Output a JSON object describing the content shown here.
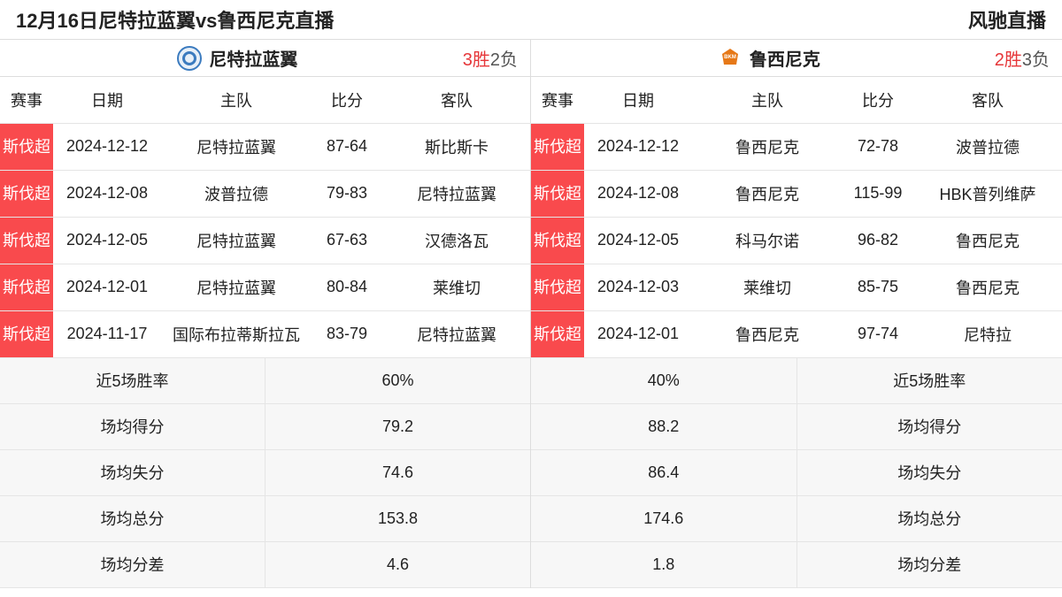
{
  "header": {
    "title": "12月16日尼特拉蓝翼vs鲁西尼克直播",
    "brand": "风驰直播"
  },
  "teams": {
    "left": {
      "name": "尼特拉蓝翼",
      "logo_text": "◐",
      "wins": "3胜",
      "losses": "2负"
    },
    "right": {
      "name": "鲁西尼克",
      "logo_text": "BKM",
      "wins": "2胜",
      "losses": "3负"
    }
  },
  "columns": {
    "league": "赛事",
    "date": "日期",
    "home": "主队",
    "score": "比分",
    "away": "客队"
  },
  "left_matches": [
    {
      "league": "斯伐超",
      "date": "2024-12-12",
      "home": "尼特拉蓝翼",
      "score": "87-64",
      "away": "斯比斯卡"
    },
    {
      "league": "斯伐超",
      "date": "2024-12-08",
      "home": "波普拉德",
      "score": "79-83",
      "away": "尼特拉蓝翼"
    },
    {
      "league": "斯伐超",
      "date": "2024-12-05",
      "home": "尼特拉蓝翼",
      "score": "67-63",
      "away": "汉德洛瓦"
    },
    {
      "league": "斯伐超",
      "date": "2024-12-01",
      "home": "尼特拉蓝翼",
      "score": "80-84",
      "away": "莱维切"
    },
    {
      "league": "斯伐超",
      "date": "2024-11-17",
      "home": "国际布拉蒂斯拉瓦",
      "score": "83-79",
      "away": "尼特拉蓝翼"
    }
  ],
  "right_matches": [
    {
      "league": "斯伐超",
      "date": "2024-12-12",
      "home": "鲁西尼克",
      "score": "72-78",
      "away": "波普拉德"
    },
    {
      "league": "斯伐超",
      "date": "2024-12-08",
      "home": "鲁西尼克",
      "score": "115-99",
      "away": "HBK普列维萨"
    },
    {
      "league": "斯伐超",
      "date": "2024-12-05",
      "home": "科马尔诺",
      "score": "96-82",
      "away": "鲁西尼克"
    },
    {
      "league": "斯伐超",
      "date": "2024-12-03",
      "home": "莱维切",
      "score": "85-75",
      "away": "鲁西尼克"
    },
    {
      "league": "斯伐超",
      "date": "2024-12-01",
      "home": "鲁西尼克",
      "score": "97-74",
      "away": "尼特拉"
    }
  ],
  "stats": {
    "labels": {
      "winrate": "近5场胜率",
      "avg_score": "场均得分",
      "avg_concede": "场均失分",
      "avg_total": "场均总分",
      "avg_diff": "场均分差"
    },
    "left": {
      "winrate": "60%",
      "avg_score": "79.2",
      "avg_concede": "74.6",
      "avg_total": "153.8",
      "avg_diff": "4.6"
    },
    "right": {
      "winrate": "40%",
      "avg_score": "88.2",
      "avg_concede": "86.4",
      "avg_total": "174.6",
      "avg_diff": "1.8"
    }
  },
  "colors": {
    "badge_bg": "#f94a4d",
    "win_color": "#e6373a",
    "border": "#e5e5e5",
    "stat_bg": "#f7f7f7"
  }
}
